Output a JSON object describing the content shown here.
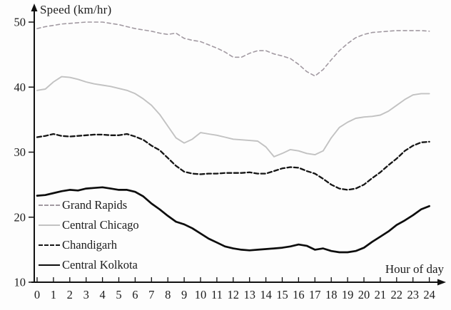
{
  "chart_data": {
    "type": "line",
    "title": "Speed (km/hr)",
    "xlabel": "Hour of day",
    "ylabel": "Speed (km/hr)",
    "x_ticks": [
      0,
      1,
      2,
      3,
      4,
      5,
      6,
      7,
      8,
      9,
      10,
      11,
      12,
      13,
      14,
      15,
      16,
      17,
      18,
      19,
      20,
      21,
      22,
      23,
      24
    ],
    "y_ticks": [
      10,
      20,
      30,
      40,
      50
    ],
    "xlim": [
      0,
      24
    ],
    "ylim": [
      10,
      50
    ],
    "x_step": 0.5,
    "grid": false,
    "legend_position": "inside-left-middle",
    "axis_color": "#111111",
    "text_color": "#1c1c1c",
    "background": "#fdfdfd",
    "series": [
      {
        "name": "Grand Rapids",
        "style": "dashed",
        "color": "#a29aa2",
        "width": 1.6,
        "dash": "5,4",
        "values": [
          49.0,
          49.3,
          49.5,
          49.7,
          49.8,
          49.9,
          50.0,
          50.0,
          50.0,
          49.8,
          49.6,
          49.3,
          49.0,
          48.8,
          48.6,
          48.3,
          48.1,
          48.3,
          47.5,
          47.2,
          47.0,
          46.5,
          46.0,
          45.4,
          44.6,
          44.6,
          45.2,
          45.6,
          45.6,
          45.1,
          44.8,
          44.4,
          43.5,
          42.4,
          41.7,
          42.7,
          44.2,
          45.6,
          46.7,
          47.6,
          48.1,
          48.4,
          48.5,
          48.6,
          48.7,
          48.7,
          48.7,
          48.7,
          48.6
        ]
      },
      {
        "name": "Central Chicago",
        "style": "solid",
        "color": "#c2c2c2",
        "width": 1.9,
        "dash": "",
        "values": [
          39.5,
          39.7,
          40.8,
          41.6,
          41.5,
          41.2,
          40.8,
          40.5,
          40.3,
          40.1,
          39.8,
          39.5,
          39.0,
          38.2,
          37.2,
          35.8,
          34.0,
          32.2,
          31.4,
          32.0,
          33.0,
          32.8,
          32.6,
          32.3,
          32.0,
          31.9,
          31.8,
          31.7,
          30.8,
          29.3,
          29.8,
          30.4,
          30.2,
          29.8,
          29.6,
          30.2,
          32.2,
          33.8,
          34.6,
          35.2,
          35.4,
          35.5,
          35.7,
          36.3,
          37.2,
          38.1,
          38.8,
          39.0,
          39.0
        ]
      },
      {
        "name": "Chandigarh",
        "style": "dashed",
        "color": "#151515",
        "width": 2.3,
        "dash": "6,3.5",
        "values": [
          32.3,
          32.5,
          32.8,
          32.5,
          32.4,
          32.5,
          32.6,
          32.7,
          32.7,
          32.6,
          32.6,
          32.8,
          32.4,
          31.9,
          31.0,
          30.3,
          29.1,
          27.9,
          27.0,
          26.7,
          26.6,
          26.7,
          26.7,
          26.8,
          26.8,
          26.8,
          26.9,
          26.7,
          26.7,
          27.1,
          27.5,
          27.7,
          27.6,
          27.1,
          26.7,
          25.9,
          25.0,
          24.4,
          24.2,
          24.4,
          25.0,
          26.0,
          26.9,
          28.0,
          29.0,
          30.2,
          31.0,
          31.5,
          31.6
        ]
      },
      {
        "name": "Central Kolkota",
        "style": "solid",
        "color": "#0d0d0d",
        "width": 2.7,
        "dash": "",
        "values": [
          23.3,
          23.4,
          23.7,
          24.0,
          24.2,
          24.1,
          24.4,
          24.5,
          24.6,
          24.4,
          24.2,
          24.2,
          23.9,
          23.2,
          22.1,
          21.2,
          20.2,
          19.3,
          18.9,
          18.3,
          17.5,
          16.7,
          16.1,
          15.5,
          15.2,
          15.0,
          14.9,
          15.0,
          15.1,
          15.2,
          15.3,
          15.5,
          15.8,
          15.6,
          15.0,
          15.2,
          14.8,
          14.6,
          14.6,
          14.8,
          15.3,
          16.2,
          17.0,
          17.8,
          18.8,
          19.5,
          20.3,
          21.2,
          21.7
        ]
      }
    ]
  }
}
